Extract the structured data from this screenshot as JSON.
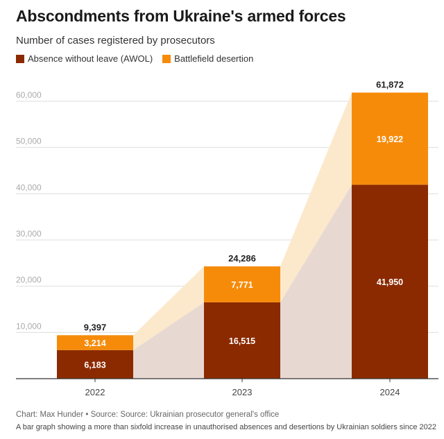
{
  "colors": {
    "awol": "#8B2A00",
    "desertion": "#F68B0A",
    "awol_band": "#E8D8D2",
    "desertion_band": "#FCE9CC",
    "grid": "#dddddd",
    "axis": "#333333"
  },
  "chart_data": {
    "type": "bar",
    "stacked": true,
    "title": "Abscondments from Ukraine's armed forces",
    "subtitle": "Number of cases registered by prosecutors",
    "categories": [
      "2022",
      "2023",
      "2024"
    ],
    "series": [
      {
        "name": "Absence without leave (AWOL)",
        "values": [
          6183,
          16515,
          41950
        ],
        "labels": [
          "6,183",
          "16,515",
          "41,950"
        ]
      },
      {
        "name": "Battlefield desertion",
        "values": [
          3214,
          7771,
          19922
        ],
        "labels": [
          "3,214",
          "7,771",
          "19,922"
        ]
      }
    ],
    "totals": [
      9397,
      24286,
      61872
    ],
    "total_labels": [
      "9,397",
      "24,286",
      "61,872"
    ],
    "ylim": [
      0,
      62000
    ],
    "yticks": [
      10000,
      20000,
      30000,
      40000,
      50000,
      60000
    ],
    "ytick_labels": [
      "10,000",
      "20,000",
      "30,000",
      "40,000",
      "50,000",
      "60,000"
    ],
    "xlabel": "",
    "ylabel": "",
    "legend_position": "top-left",
    "grid": true
  },
  "footer": {
    "source": "Chart: Max Hunder • Source: Source: Ukrainian prosecutor general's office",
    "description": "A bar graph showing a more than sixfold increase in unauthorised absences and desertions by Ukrainian soldiers since 2022"
  }
}
